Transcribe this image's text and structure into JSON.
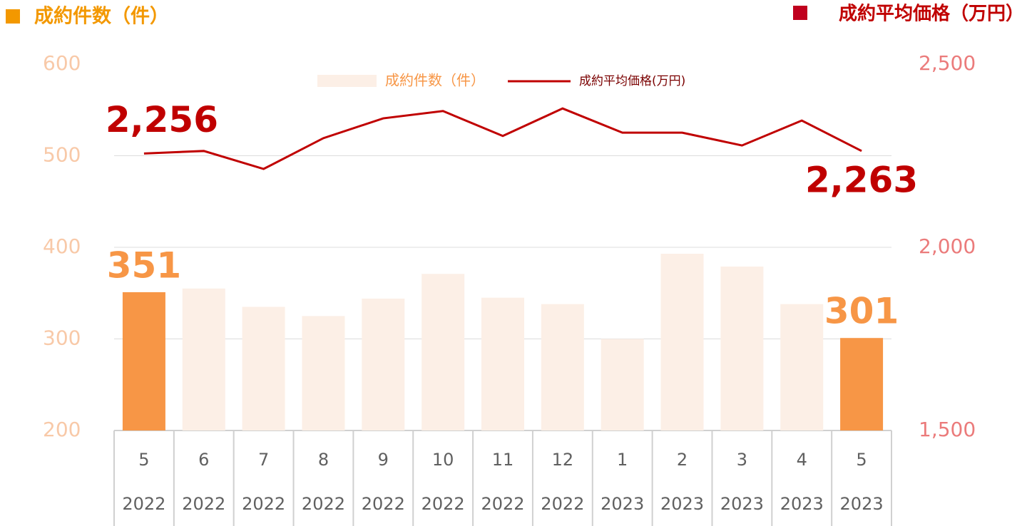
{
  "chart_data": {
    "type": "combo",
    "y_label": "成約件数（件）",
    "y2_label": "成約平均価格（万円）",
    "categories": [
      "5",
      "6",
      "7",
      "8",
      "9",
      "10",
      "11",
      "12",
      "1",
      "2",
      "3",
      "4",
      "5"
    ],
    "category_years": [
      "2022",
      "2022",
      "2022",
      "2022",
      "2022",
      "2022",
      "2022",
      "2022",
      "2023",
      "2023",
      "2023",
      "2023",
      "2023"
    ],
    "series": [
      {
        "name": "成約件数（件）",
        "type": "bar",
        "color": "#fcefe6",
        "colors": [
          "#f79646",
          "#fcefe6",
          "#fcefe6",
          "#fcefe6",
          "#fcefe6",
          "#fcefe6",
          "#fcefe6",
          "#fcefe6",
          "#fcefe6",
          "#fcefe6",
          "#fcefe6",
          "#fcefe6",
          "#f79646"
        ],
        "values": [
          351,
          355,
          335,
          325,
          344,
          371,
          345,
          338,
          300,
          393,
          379,
          338,
          301
        ],
        "value_labels": [
          "351",
          null,
          null,
          null,
          null,
          null,
          null,
          null,
          null,
          null,
          null,
          null,
          "301"
        ]
      },
      {
        "name": "成約平均価格(万円)",
        "type": "line",
        "axis": "y2",
        "color": "#c00000",
        "values": [
          2256,
          2263,
          2214,
          2298,
          2352,
          2372,
          2304,
          2379,
          2313,
          2313,
          2278,
          2346,
          2263
        ],
        "value_labels": [
          "2,256",
          null,
          null,
          null,
          null,
          null,
          null,
          null,
          null,
          null,
          null,
          null,
          "2,263"
        ]
      }
    ],
    "ylim": [
      200,
      600
    ],
    "yticks": [
      200,
      300,
      400,
      500,
      600
    ],
    "y2lim": [
      1500,
      2500
    ],
    "y2ticks": [
      {
        "value": 1500,
        "label": "1,500"
      },
      {
        "value": 2000,
        "label": "2,000"
      },
      {
        "value": 2500,
        "label": "2,500"
      }
    ],
    "grid": true
  }
}
